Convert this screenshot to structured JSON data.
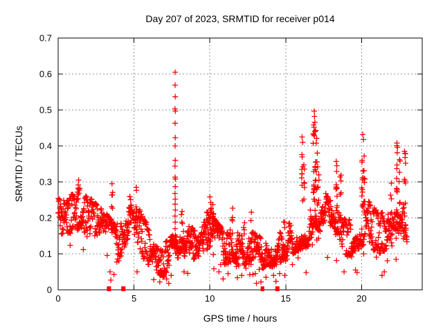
{
  "page": {
    "background": "#ffffff"
  },
  "chart_data": {
    "type": "scatter",
    "title": "Day 207 of 2023, SRMTID for receiver p014",
    "xlabel": "GPS time / hours",
    "ylabel": "SRMTID / TECUs",
    "xlim": [
      0,
      24
    ],
    "ylim": [
      0,
      0.7
    ],
    "xticks": [
      0,
      5,
      10,
      15,
      20
    ],
    "xtick_labels": [
      "0",
      "5",
      "10",
      "15",
      "20"
    ],
    "yticks": [
      0,
      0.1,
      0.2,
      0.3,
      0.4,
      0.5,
      0.6,
      0.7
    ],
    "ytick_labels": [
      "0",
      "0.1",
      "0.2",
      "0.3",
      "0.4",
      "0.5",
      "0.6",
      "0.7"
    ],
    "grid": {
      "show": true,
      "color": "#909090",
      "dash": [
        2,
        3
      ]
    },
    "marker": {
      "shape": "plus",
      "color": "#ff0000",
      "size": 8,
      "stroke": 1.3
    },
    "border_color": "#000000",
    "series_name": "SRMTID",
    "data_end_hour": 23.0,
    "sampling": {
      "seed": 42,
      "step_hours": 0.028,
      "tracks": 2
    },
    "band_nodes": [
      [
        0.0,
        0.15,
        0.26
      ],
      [
        0.5,
        0.15,
        0.25
      ],
      [
        1.0,
        0.16,
        0.27
      ],
      [
        1.5,
        0.17,
        0.285
      ],
      [
        2.0,
        0.14,
        0.26
      ],
      [
        2.5,
        0.11,
        0.24
      ],
      [
        3.0,
        0.1,
        0.22
      ],
      [
        3.5,
        0.09,
        0.2
      ],
      [
        4.0,
        0.08,
        0.2
      ],
      [
        4.5,
        0.1,
        0.23
      ],
      [
        5.0,
        0.1,
        0.24
      ],
      [
        5.5,
        0.09,
        0.22
      ],
      [
        6.0,
        0.06,
        0.17
      ],
      [
        6.5,
        0.03,
        0.12
      ],
      [
        7.0,
        0.04,
        0.13
      ],
      [
        7.5,
        0.05,
        0.15
      ],
      [
        7.9,
        0.07,
        0.18
      ],
      [
        8.2,
        0.1,
        0.23
      ],
      [
        8.6,
        0.09,
        0.19
      ],
      [
        9.0,
        0.08,
        0.17
      ],
      [
        9.5,
        0.1,
        0.2
      ],
      [
        10.0,
        0.12,
        0.24
      ],
      [
        10.4,
        0.09,
        0.2
      ],
      [
        10.8,
        0.07,
        0.17
      ],
      [
        11.2,
        0.07,
        0.16
      ],
      [
        11.6,
        0.08,
        0.18
      ],
      [
        12.0,
        0.06,
        0.15
      ],
      [
        12.5,
        0.07,
        0.17
      ],
      [
        13.0,
        0.06,
        0.16
      ],
      [
        13.5,
        0.06,
        0.14
      ],
      [
        14.0,
        0.06,
        0.14
      ],
      [
        14.5,
        0.07,
        0.16
      ],
      [
        15.0,
        0.08,
        0.18
      ],
      [
        15.5,
        0.1,
        0.2
      ],
      [
        16.0,
        0.11,
        0.22
      ],
      [
        16.5,
        0.12,
        0.25
      ],
      [
        16.9,
        0.17,
        0.3
      ],
      [
        17.2,
        0.16,
        0.3
      ],
      [
        17.6,
        0.14,
        0.27
      ],
      [
        18.0,
        0.12,
        0.25
      ],
      [
        18.5,
        0.11,
        0.23
      ],
      [
        19.0,
        0.09,
        0.19
      ],
      [
        19.5,
        0.1,
        0.21
      ],
      [
        20.0,
        0.12,
        0.25
      ],
      [
        20.4,
        0.13,
        0.25
      ],
      [
        20.8,
        0.11,
        0.23
      ],
      [
        21.2,
        0.1,
        0.21
      ],
      [
        21.6,
        0.11,
        0.23
      ],
      [
        22.0,
        0.12,
        0.25
      ],
      [
        22.4,
        0.13,
        0.26
      ],
      [
        22.7,
        0.12,
        0.25
      ],
      [
        23.0,
        0.13,
        0.22
      ]
    ],
    "spikes": [
      [
        1.35,
        0.26,
        0.31,
        3
      ],
      [
        3.55,
        0.2,
        0.3,
        5
      ],
      [
        4.75,
        0.21,
        0.275,
        4
      ],
      [
        5.15,
        0.2,
        0.28,
        4
      ],
      [
        8.15,
        0.18,
        0.25,
        4
      ],
      [
        9.85,
        0.14,
        0.22,
        4
      ],
      [
        10.05,
        0.16,
        0.26,
        9
      ],
      [
        10.2,
        0.15,
        0.24,
        6
      ],
      [
        11.5,
        0.17,
        0.23,
        4
      ],
      [
        12.25,
        0.15,
        0.21,
        4
      ],
      [
        12.75,
        0.18,
        0.23,
        2
      ],
      [
        14.9,
        0.15,
        0.21,
        3
      ],
      [
        16.1,
        0.24,
        0.42,
        9
      ],
      [
        16.22,
        0.2,
        0.36,
        6
      ],
      [
        16.85,
        0.25,
        0.5,
        12
      ],
      [
        16.95,
        0.28,
        0.47,
        9
      ],
      [
        17.05,
        0.22,
        0.44,
        8
      ],
      [
        17.15,
        0.2,
        0.38,
        6
      ],
      [
        18.35,
        0.2,
        0.355,
        7
      ],
      [
        18.62,
        0.24,
        0.33,
        5
      ],
      [
        20.05,
        0.24,
        0.43,
        9
      ],
      [
        20.2,
        0.2,
        0.4,
        7
      ],
      [
        21.95,
        0.21,
        0.31,
        5
      ],
      [
        22.35,
        0.27,
        0.41,
        9
      ],
      [
        22.5,
        0.24,
        0.38,
        6
      ],
      [
        22.85,
        0.24,
        0.385,
        7
      ]
    ],
    "peak_points": [
      [
        7.71,
        0.605
      ],
      [
        7.71,
        0.569
      ],
      [
        7.72,
        0.537
      ],
      [
        7.7,
        0.503
      ],
      [
        7.73,
        0.497
      ],
      [
        7.71,
        0.463
      ],
      [
        7.72,
        0.423
      ],
      [
        7.71,
        0.4
      ],
      [
        7.72,
        0.36
      ],
      [
        7.7,
        0.344
      ],
      [
        7.71,
        0.313
      ],
      [
        7.73,
        0.308
      ],
      [
        7.72,
        0.287
      ],
      [
        7.7,
        0.268
      ],
      [
        7.72,
        0.252
      ],
      [
        7.71,
        0.238
      ],
      [
        7.73,
        0.222
      ],
      [
        7.7,
        0.205
      ],
      [
        7.72,
        0.188
      ],
      [
        7.71,
        0.17
      ],
      [
        7.73,
        0.152
      ],
      [
        7.7,
        0.135
      ],
      [
        7.72,
        0.118
      ],
      [
        7.74,
        0.102
      ],
      [
        16.88,
        0.497
      ],
      [
        16.9,
        0.482
      ],
      [
        16.92,
        0.466
      ],
      [
        16.87,
        0.452
      ],
      [
        16.93,
        0.44
      ],
      [
        16.89,
        0.428
      ],
      [
        16.08,
        0.425
      ],
      [
        16.12,
        0.41
      ],
      [
        18.33,
        0.357
      ],
      [
        18.37,
        0.345
      ],
      [
        20.08,
        0.432
      ],
      [
        20.12,
        0.418
      ],
      [
        22.33,
        0.408
      ],
      [
        22.37,
        0.396
      ],
      [
        22.83,
        0.385
      ],
      [
        22.87,
        0.368
      ],
      [
        22.9,
        0.352
      ],
      [
        1.35,
        0.305
      ],
      [
        3.55,
        0.295
      ],
      [
        5.15,
        0.285
      ]
    ],
    "low_points": [
      [
        3.42,
        0.05
      ],
      [
        3.47,
        0.027
      ],
      [
        5.2,
        0.05
      ],
      [
        6.3,
        0.028
      ],
      [
        6.7,
        0.022
      ],
      [
        6.9,
        0.035
      ],
      [
        7.15,
        0.03
      ],
      [
        7.45,
        0.04
      ],
      [
        8.3,
        0.05
      ],
      [
        10.6,
        0.05
      ],
      [
        11.2,
        0.045
      ],
      [
        12.1,
        0.04
      ],
      [
        13.0,
        0.045
      ],
      [
        13.7,
        0.035
      ],
      [
        14.2,
        0.04
      ],
      [
        14.6,
        0.045
      ],
      [
        16.35,
        0.048
      ],
      [
        18.85,
        0.05
      ],
      [
        19.6,
        0.055
      ],
      [
        19.7,
        0.048
      ],
      [
        21.35,
        0.04
      ],
      [
        21.5,
        0.05
      ]
    ],
    "zero_points": [
      {
        "t": 3.35,
        "w": 6
      },
      {
        "t": 4.3,
        "w": 6
      },
      {
        "t": 13.42,
        "w": 3
      },
      {
        "t": 13.52,
        "w": 3
      },
      {
        "t": 14.45,
        "w": 6
      }
    ]
  }
}
